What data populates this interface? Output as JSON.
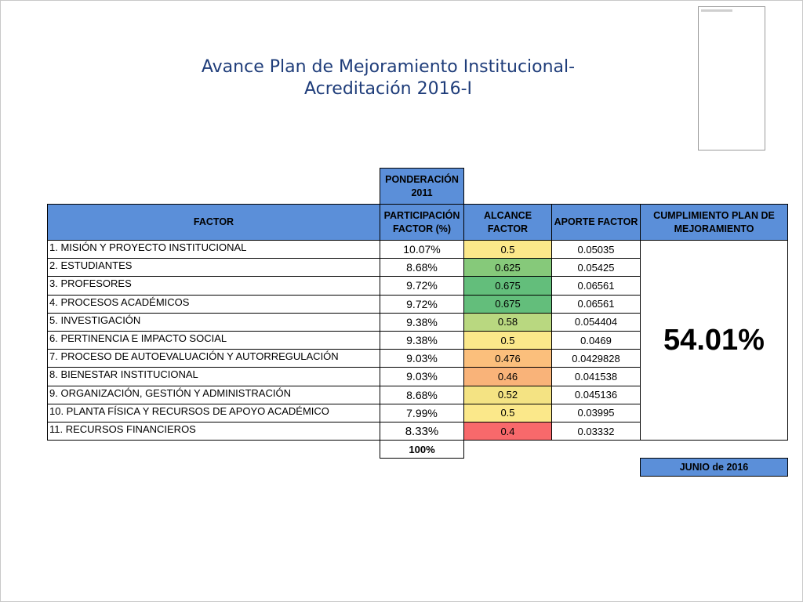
{
  "title_line1": "Avance Plan de Mejoramiento Institucional-",
  "title_line2": "Acreditación 2016-I",
  "headers": {
    "ponderacion": "PONDERACIÓN 2011",
    "factor": "FACTOR",
    "participacion": "PARTICIPACIÓN FACTOR (%)",
    "alcance": "ALCANCE FACTOR",
    "aporte": "APORTE FACTOR",
    "cumplimiento": "CUMPLIMIENTO PLAN DE MEJORAMIENTO"
  },
  "rows": [
    {
      "factor": "1. MISIÓN Y PROYECTO INSTITUCIONAL",
      "part": "10.07%",
      "alcance": "0.5",
      "aporte": "0.05035",
      "color": "#fbe88a"
    },
    {
      "factor": "2. ESTUDIANTES",
      "part": "8.68%",
      "alcance": "0.625",
      "aporte": "0.05425",
      "color": "#86c97a"
    },
    {
      "factor": "3. PROFESORES",
      "part": "9.72%",
      "alcance": "0.675",
      "aporte": "0.06561",
      "color": "#63be7b"
    },
    {
      "factor": "4. PROCESOS ACADÉMICOS",
      "part": "9.72%",
      "alcance": "0.675",
      "aporte": "0.06561",
      "color": "#63be7b"
    },
    {
      "factor": "5. INVESTIGACIÓN",
      "part": "9.38%",
      "alcance": "0.58",
      "aporte": "0.054404",
      "color": "#b9d880"
    },
    {
      "factor": "6. PERTINENCIA E IMPACTO SOCIAL",
      "part": "9.38%",
      "alcance": "0.5",
      "aporte": "0.0469",
      "color": "#fbe88a"
    },
    {
      "factor": "7. PROCESO DE AUTOEVALUACIÓN Y AUTORREGULACIÓN",
      "part": "9.03%",
      "alcance": "0.476",
      "aporte": "0.0429828",
      "color": "#fbbf7c"
    },
    {
      "factor": "8. BIENESTAR INSTITUCIONAL",
      "part": "9.03%",
      "alcance": "0.46",
      "aporte": "0.041538",
      "color": "#f9b379"
    },
    {
      "factor": "9. ORGANIZACIÓN, GESTIÓN Y ADMINISTRACIÓN",
      "part": "8.68%",
      "alcance": "0.52",
      "aporte": "0.045136",
      "color": "#f4e383"
    },
    {
      "factor": "10. PLANTA FÍSICA Y RECURSOS DE APOYO ACADÉMICO",
      "part": "7.99%",
      "alcance": "0.5",
      "aporte": "0.03995",
      "color": "#fbe88a"
    },
    {
      "factor": "11. RECURSOS FINANCIEROS",
      "part": "8.33%",
      "alcance": "0.4",
      "aporte": "0.03332",
      "color": "#f8696b"
    }
  ],
  "total": "100%",
  "cumplimiento_valor": "54.01%",
  "fecha": "JUNIO de 2016"
}
